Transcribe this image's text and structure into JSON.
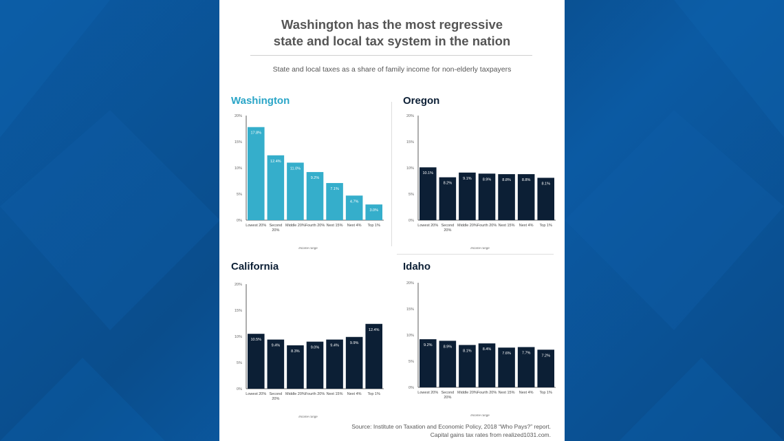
{
  "header": {
    "title_line1": "Washington has the most regressive",
    "title_line2": "state and local tax system in the nation",
    "subtitle": "State and local taxes as a share of family income for non-elderly taxpayers"
  },
  "footer": {
    "source_line1": "Source: Institute on Taxation and Economic Policy, 2018 “Who Pays?” report.",
    "source_line2": "Capital gains tax rates from realized1031.com."
  },
  "colors": {
    "washington": "#35aecb",
    "others": "#0c1f35",
    "title_washington": "#2aa5c7",
    "title_others": "#0c1f35",
    "background": "#0a4f8f"
  },
  "chart_data": [
    {
      "type": "bar",
      "title": "Washington",
      "categories": [
        "Lowest 20%",
        "Second 20%",
        "Middle 20%",
        "Fourth 20%",
        "Next 15%",
        "Next 4%",
        "Top 1%"
      ],
      "values": [
        17.8,
        12.4,
        11.0,
        9.2,
        7.1,
        4.7,
        3.0
      ],
      "value_labels": [
        "17.8%",
        "12.4%",
        "11.0%",
        "9.2%",
        "7.1%",
        "4.7%",
        "3.0%"
      ],
      "yticks": [
        "0%",
        "5%",
        "10%",
        "15%",
        "20%"
      ],
      "ylim": [
        0,
        20
      ],
      "xlabel": "Income range"
    },
    {
      "type": "bar",
      "title": "Oregon",
      "categories": [
        "Lowest 20%",
        "Second 20%",
        "Middle 20%",
        "Fourth 20%",
        "Next 15%",
        "Next 4%",
        "Top 1%"
      ],
      "values": [
        10.1,
        8.2,
        9.1,
        8.9,
        8.8,
        8.8,
        8.1
      ],
      "value_labels": [
        "10.1%",
        "8.2%",
        "9.1%",
        "8.9%",
        "8.8%",
        "8.8%",
        "8.1%"
      ],
      "yticks": [
        "0%",
        "5%",
        "10%",
        "15%",
        "20%"
      ],
      "ylim": [
        0,
        20
      ],
      "xlabel": "Income range"
    },
    {
      "type": "bar",
      "title": "California",
      "categories": [
        "Lowest 20%",
        "Second 20%",
        "Middle 20%",
        "Fourth 20%",
        "Next 15%",
        "Next 4%",
        "Top 1%"
      ],
      "values": [
        10.5,
        9.4,
        8.3,
        9.0,
        9.4,
        9.9,
        12.4
      ],
      "value_labels": [
        "10.5%",
        "9.4%",
        "8.3%",
        "9.0%",
        "9.4%",
        "9.9%",
        "12.4%"
      ],
      "yticks": [
        "0%",
        "5%",
        "10%",
        "15%",
        "20%"
      ],
      "ylim": [
        0,
        20
      ],
      "xlabel": "Income range"
    },
    {
      "type": "bar",
      "title": "Idaho",
      "categories": [
        "Lowest 20%",
        "Second 20%",
        "Middle 20%",
        "Fourth 20%",
        "Next 15%",
        "Next 4%",
        "Top 1%"
      ],
      "values": [
        9.2,
        8.9,
        8.1,
        8.4,
        7.6,
        7.7,
        7.2
      ],
      "value_labels": [
        "9.2%",
        "8.9%",
        "8.1%",
        "8.4%",
        "7.6%",
        "7.7%",
        "7.2%"
      ],
      "yticks": [
        "0%",
        "5%",
        "10%",
        "15%",
        "20%"
      ],
      "ylim": [
        0,
        20
      ],
      "xlabel": "Income range"
    }
  ]
}
